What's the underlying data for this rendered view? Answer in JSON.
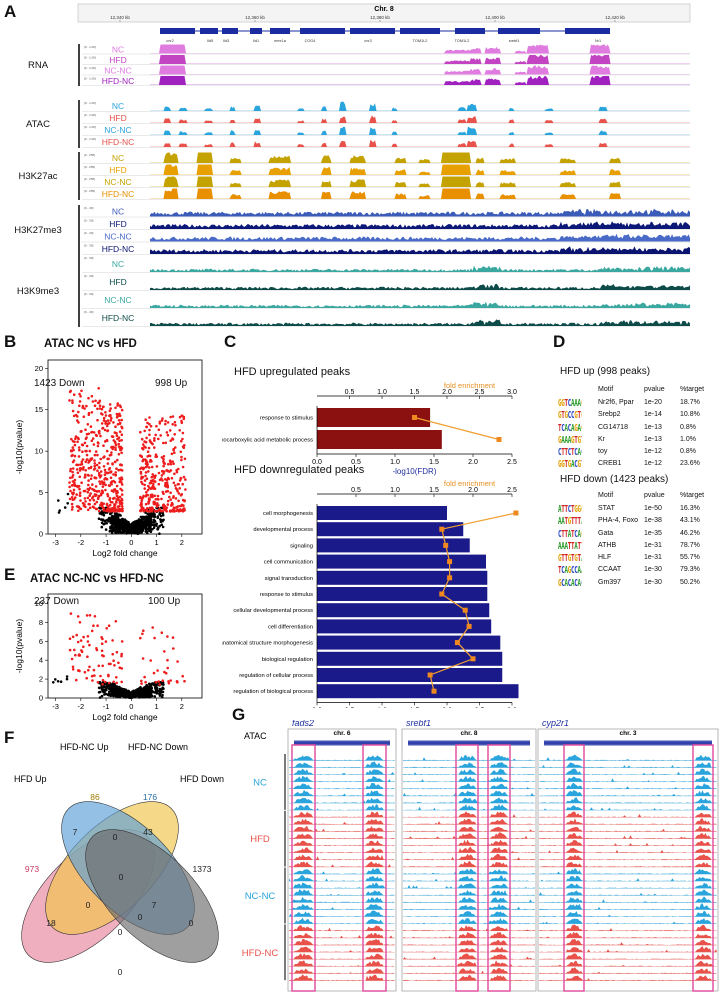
{
  "panel_labels": {
    "A": "A",
    "B": "B",
    "C": "C",
    "D": "D",
    "E": "E",
    "F": "F",
    "G": "G"
  },
  "A": {
    "chrom": "Chr. 8",
    "coords": [
      "12,340 kb",
      "12,360 kb",
      "12,380 kb",
      "12,400 kb",
      "12,420 kb"
    ],
    "genes": [
      "cnr2",
      "Ild5",
      "Ild3",
      "Ild1",
      "mmr1a",
      "COG4",
      "cnr3",
      "TOM1L2",
      "TOM1L2",
      "srebf1",
      "Nr1"
    ],
    "groups": [
      {
        "name": "RNA",
        "color": "#cc44cc",
        "range": "[0 - 1.00]",
        "tracks": [
          {
            "label": "NC",
            "color": "#e07ce0"
          },
          {
            "label": "HFD",
            "color": "#c244c2"
          },
          {
            "label": "NC-NC",
            "color": "#e07ce0"
          },
          {
            "label": "HFD-NC",
            "color": "#a020c0"
          }
        ]
      },
      {
        "name": "ATAC",
        "color": "#3aa9dd",
        "range": "[0 - 1.00]",
        "tracks": [
          {
            "label": "NC",
            "color": "#2aa4dc"
          },
          {
            "label": "HFD",
            "color": "#e8524a"
          },
          {
            "label": "NC-NC",
            "color": "#2aa4dc"
          },
          {
            "label": "HFD-NC",
            "color": "#e8524a"
          }
        ]
      },
      {
        "name": "H3K27ac",
        "color": "#c9a400",
        "range": "[0 - 255]",
        "tracks": [
          {
            "label": "NC",
            "color": "#c4a200"
          },
          {
            "label": "HFD",
            "color": "#e8a000"
          },
          {
            "label": "NC-NC",
            "color": "#c4a200"
          },
          {
            "label": "HFD-NC",
            "color": "#e89000"
          }
        ]
      },
      {
        "name": "H3K27me3",
        "color": "#2d4fa8",
        "range": "[0 - 30]",
        "tracks": [
          {
            "label": "NC",
            "color": "#3b5bb8"
          },
          {
            "label": "HFD",
            "color": "#0c1878"
          },
          {
            "label": "NC-NC",
            "color": "#4a6ac8"
          },
          {
            "label": "HFD-NC",
            "color": "#0a1470"
          }
        ]
      },
      {
        "name": "H3K9me3",
        "color": "#1a8080",
        "range": "[0 - 30]",
        "tracks": [
          {
            "label": "NC",
            "color": "#3aa8a0"
          },
          {
            "label": "HFD",
            "color": "#0c4b48"
          },
          {
            "label": "NC-NC",
            "color": "#3aa8a0"
          },
          {
            "label": "HFD-NC",
            "color": "#0c4b48"
          }
        ]
      }
    ]
  },
  "B": {
    "title": "ATAC NC vs HFD",
    "down": "1423 Down",
    "up": "998 Up",
    "xlabel": "Log2 fold change",
    "ylabel": "-log10(pvalue)"
  },
  "E": {
    "title": "ATAC NC-NC vs HFD-NC",
    "down": "237 Down",
    "up": "100 Up",
    "xlabel": "Log2 fold change",
    "ylabel": "-log10(pvalue)"
  },
  "chart_data": [
    {
      "type": "scatter",
      "title": "ATAC NC vs HFD",
      "xlabel": "Log2 fold change",
      "ylabel": "-log10(pvalue)",
      "xlim": [
        -3.3,
        2.8
      ],
      "ylim": [
        0,
        21
      ],
      "xticks": [
        "-3",
        "-2",
        "-1",
        "0",
        "1",
        "2"
      ],
      "yticks": [
        "0",
        "5",
        "10",
        "15",
        "20"
      ],
      "down_count": 1423,
      "up_count": 998
    },
    {
      "type": "scatter",
      "title": "ATAC NC-NC vs HFD-NC",
      "xlabel": "Log2 fold change",
      "ylabel": "-log10(pvalue)",
      "xlim": [
        -3.3,
        2.8
      ],
      "ylim": [
        0,
        11
      ],
      "xticks": [
        "-3",
        "-2",
        "-1",
        "0",
        "1",
        "2"
      ],
      "yticks": [
        "0",
        "2",
        "4",
        "6",
        "8",
        "10"
      ],
      "down_count": 237,
      "up_count": 100
    },
    {
      "type": "bar",
      "title": "HFD upregulated peaks",
      "xlabel": "-log10(FDR)",
      "top_axis": "fold enrichment",
      "categories": [
        "response to stimulus",
        "monocarboxylic acid metabolic process"
      ],
      "values": [
        1.45,
        1.6
      ],
      "fold_enrichment": [
        1.5,
        2.8
      ],
      "xlim": [
        0,
        2.5
      ],
      "fe_lim": [
        0,
        3.0
      ]
    },
    {
      "type": "bar",
      "title": "HFD downregulated peaks",
      "xlabel": "-log10(FDR)",
      "top_axis": "fold enrichment",
      "categories": [
        "cell morphogenesis",
        "developmental process",
        "signaling",
        "cell communication",
        "signal transduction",
        "response to stimulus",
        "cellular developmental process",
        "cell differentiation",
        "anatomical structure morphogenesis",
        "biological regulation",
        "regulation of cellular process",
        "regulation of biological process"
      ],
      "values": [
        2.0,
        2.25,
        2.35,
        2.6,
        2.62,
        2.62,
        2.65,
        2.68,
        2.82,
        2.85,
        2.85,
        3.1
      ],
      "fold_enrichment": [
        2.55,
        1.6,
        1.65,
        1.7,
        1.7,
        1.6,
        1.9,
        1.95,
        1.8,
        2.0,
        1.45,
        1.5
      ],
      "xlim": [
        0,
        3.0
      ],
      "fe_lim": [
        0,
        2.5
      ]
    }
  ],
  "C": {
    "up_title": "HFD upregulated peaks",
    "down_title": "HFD downregulated peaks",
    "fe_label": "fold enrichment",
    "xlabel": "-log10(FDR)",
    "up_fe_ticks": [
      "0.5",
      "1.0",
      "1.5",
      "2.0",
      "2.5",
      "3.0"
    ],
    "up_x_ticks": [
      "0.0",
      "0.5",
      "1.0",
      "1.5",
      "2.0",
      "2.5"
    ],
    "down_fe_ticks": [
      "0.5",
      "1.0",
      "1.5",
      "2.0",
      "2.5"
    ],
    "down_x_ticks": [
      "0.0",
      "0.5",
      "1.0",
      "1.5",
      "2.0",
      "2.5",
      "3.0"
    ]
  },
  "D": {
    "up_title": "HFD up (998 peaks)",
    "down_title": "HFD down (1423 peaks)",
    "headers": [
      "Motif",
      "pvalue",
      "%target"
    ],
    "up": [
      {
        "seq": "GGTCAAAGGTCA",
        "motif": "Nr2f6, Ppar",
        "p": "1e-20",
        "t": "18.7%"
      },
      {
        "seq": "GTGCCGTGAT",
        "motif": "Srebp2",
        "p": "1e-14",
        "t": "10.8%"
      },
      {
        "seq": "TCACAGAGGGGT",
        "motif": "CG14718",
        "p": "1e-13",
        "t": "0.8%"
      },
      {
        "seq": "GAAAGTGTTATT",
        "motif": "Kr",
        "p": "1e-13",
        "t": "1.0%"
      },
      {
        "seq": "CTTCTCACTGAT",
        "motif": "toy",
        "p": "1e-12",
        "t": "0.8%"
      },
      {
        "seq": "GGTGACGTCA",
        "motif": "CREB1",
        "p": "1e-12",
        "t": "23.6%"
      }
    ],
    "down": [
      {
        "seq": "ATTCTGGGAA",
        "motif": "STAT",
        "p": "1e-50",
        "t": "16.3%"
      },
      {
        "seq": "AATGTTTACA",
        "motif": "PHA-4, Foxo",
        "p": "1e-38",
        "t": "43.1%"
      },
      {
        "seq": "CTTATCAG",
        "motif": "Gata",
        "p": "1e-35",
        "t": "46.2%"
      },
      {
        "seq": "AAATTATTGG",
        "motif": "ATHB",
        "p": "1e-31",
        "t": "78.7%"
      },
      {
        "seq": "GTTGTGTAAC",
        "motif": "HLF",
        "p": "1e-31",
        "t": "55.7%"
      },
      {
        "seq": "TCAGCCAATCAC",
        "motif": "CCAAT",
        "p": "1e-30",
        "t": "79.3%"
      },
      {
        "seq": "GCACACACAC",
        "motif": "Gm397",
        "p": "1e-30",
        "t": "50.2%"
      }
    ]
  },
  "F": {
    "labels": {
      "hfd_up": "HFD Up",
      "hfdnc_up": "HFD-NC Up",
      "hfdnc_down": "HFD-NC Down",
      "hfd_down": "HFD Down"
    },
    "numbers": [
      {
        "v": "973",
        "c": "#c93a64"
      },
      {
        "v": "86",
        "c": "#a07c00"
      },
      {
        "v": "176",
        "c": "#2a6aa0"
      },
      {
        "v": "1373",
        "c": "#222222"
      },
      {
        "v": "7",
        "c": "#222"
      },
      {
        "v": "0",
        "c": "#222"
      },
      {
        "v": "43",
        "c": "#222"
      },
      {
        "v": "18",
        "c": "#222"
      },
      {
        "v": "0",
        "c": "#222"
      },
      {
        "v": "0",
        "c": "#222"
      },
      {
        "v": "7",
        "c": "#222"
      },
      {
        "v": "0",
        "c": "#222"
      },
      {
        "v": "0",
        "c": "#222"
      },
      {
        "v": "0",
        "c": "#222"
      },
      {
        "v": "0",
        "c": "#222"
      }
    ],
    "colors": {
      "hfd_up": "#e8849c",
      "hfdnc_up": "#f0c44a",
      "hfdnc_down": "#5a9ed8",
      "hfd_down": "#6b6b6b"
    }
  },
  "G": {
    "atac": "ATAC",
    "loci": [
      {
        "gene": "fads2",
        "chr": "chr. 6"
      },
      {
        "gene": "srebf1",
        "chr": "chr. 8"
      },
      {
        "gene": "cyp2r1",
        "chr": "chr. 3"
      }
    ],
    "groups": [
      {
        "name": "NC",
        "color": "#2aa4dc"
      },
      {
        "name": "HFD",
        "color": "#e8524a"
      },
      {
        "name": "NC-NC",
        "color": "#2aa4dc"
      },
      {
        "name": "HFD-NC",
        "color": "#e8524a"
      }
    ],
    "box_color": "#e0489c"
  }
}
